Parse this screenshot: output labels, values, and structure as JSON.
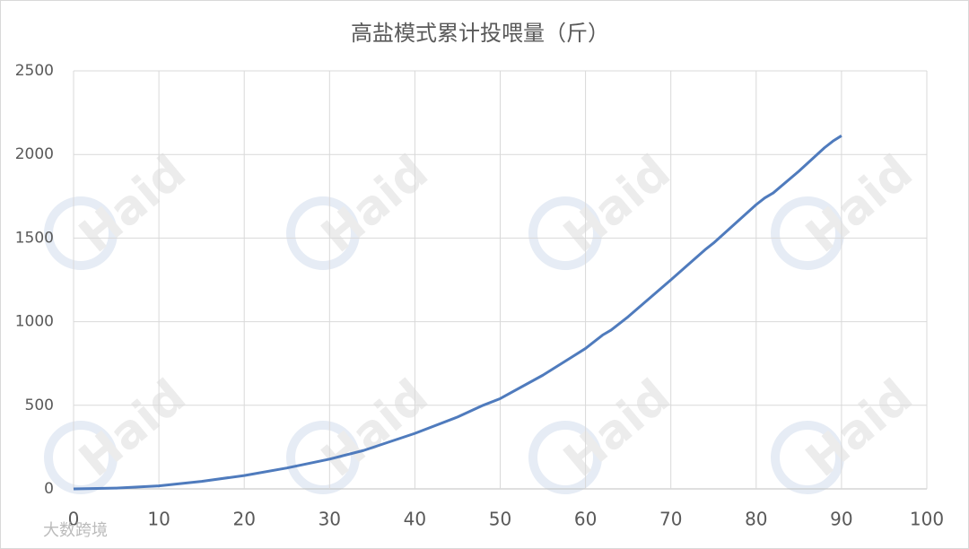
{
  "chart_data": {
    "type": "line",
    "title": "高盐模式累计投喂量（斤）",
    "x": [
      0,
      5,
      10,
      15,
      20,
      25,
      30,
      34,
      40,
      45,
      48,
      50,
      55,
      60,
      62,
      63,
      65,
      70,
      74,
      75,
      80,
      81,
      82,
      85,
      88,
      89,
      90
    ],
    "series": [
      {
        "name": "高盐模式累计投喂量",
        "color": "#4f7bbd",
        "values": [
          0,
          5,
          18,
          45,
          80,
          125,
          178,
          230,
          332,
          430,
          500,
          540,
          680,
          840,
          920,
          950,
          1030,
          1250,
          1430,
          1470,
          1700,
          1740,
          1770,
          1900,
          2040,
          2080,
          2112
        ]
      }
    ],
    "xlim": [
      0,
      100
    ],
    "xticks": [
      0,
      10,
      20,
      30,
      40,
      50,
      60,
      70,
      80,
      90,
      100
    ],
    "ylim": [
      0,
      2500
    ],
    "yticks": [
      0,
      500,
      1000,
      1500,
      2000,
      2500
    ],
    "grid": true,
    "watermark": "Haid",
    "source": "大数跨境"
  }
}
